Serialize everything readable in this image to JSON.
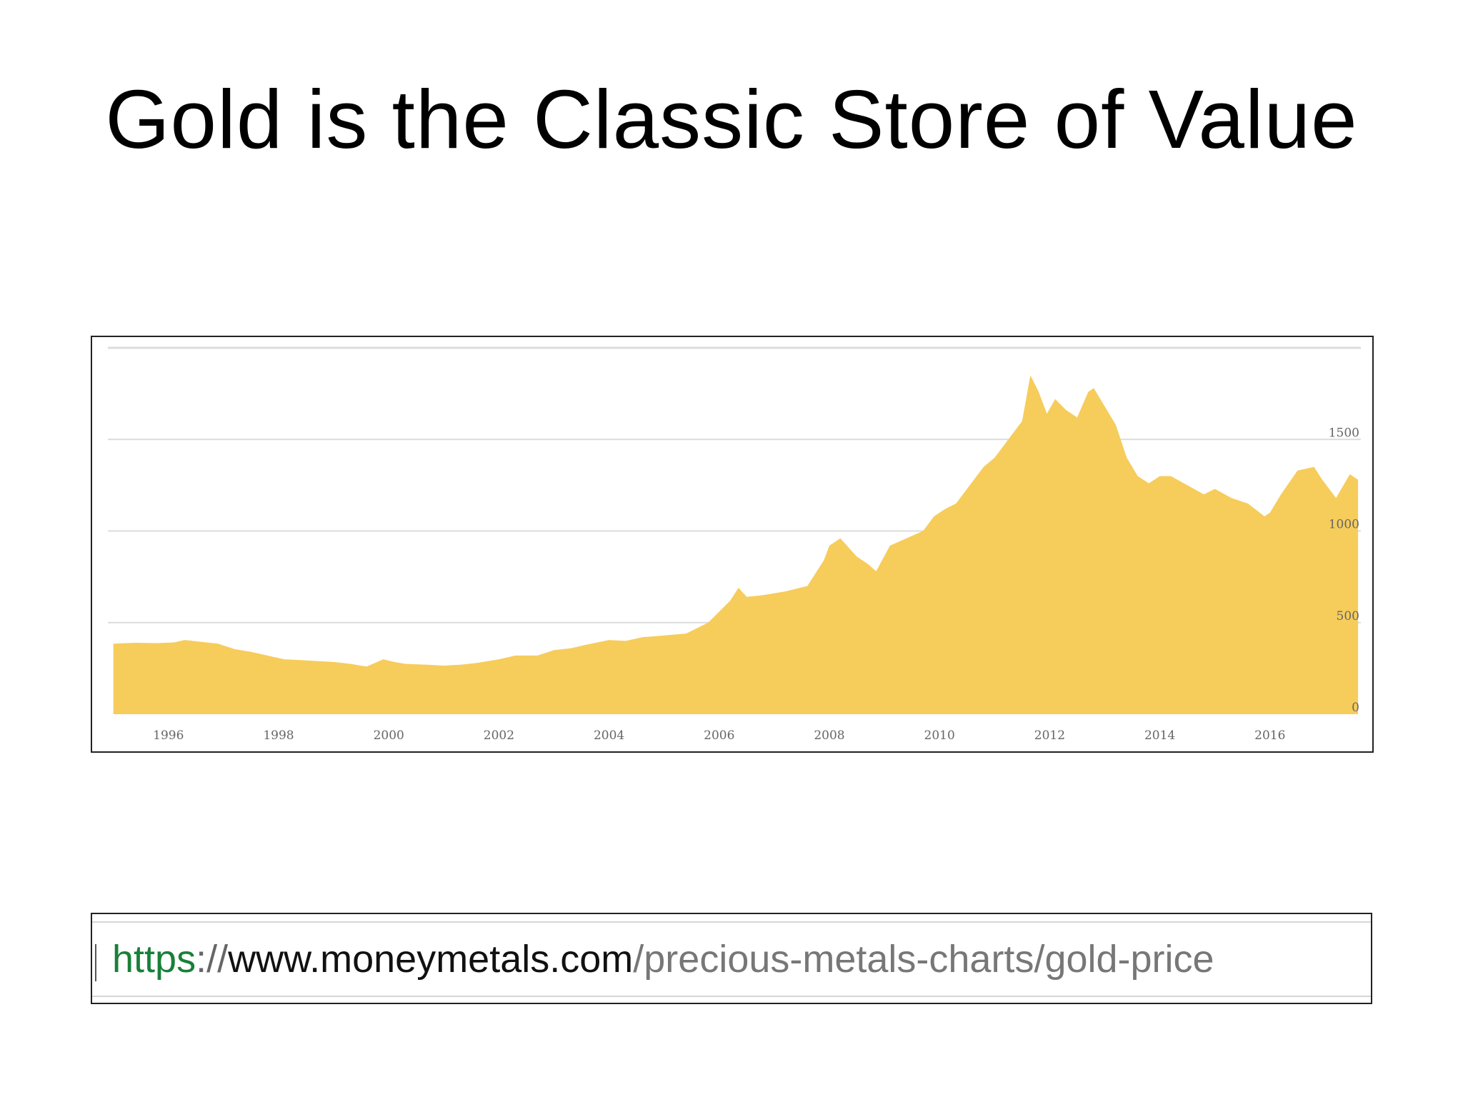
{
  "slide": {
    "title": "Gold is the Classic Store of Value"
  },
  "url_bar": {
    "scheme": "https",
    "separator": "://",
    "host": "www.moneymetals.com",
    "path": "/precious-metals-charts/gold-price"
  },
  "colors": {
    "area_fill": "#f6cc5b",
    "gridline": "#dcdcdc",
    "tick_text": "#666666",
    "scheme_green": "#188038"
  },
  "chart_data": {
    "type": "area",
    "title": "",
    "xlabel": "",
    "ylabel": "",
    "xlim": [
      1994.9,
      2017.65
    ],
    "ylim": [
      0,
      2000
    ],
    "grid": true,
    "y_axis_side": "right",
    "x_ticks": [
      1996,
      1998,
      2000,
      2002,
      2004,
      2006,
      2008,
      2010,
      2012,
      2014,
      2016
    ],
    "y_ticks": [
      0,
      500,
      1000,
      1500
    ],
    "series": [
      {
        "x": [
          1995.0,
          1995.4,
          1995.8,
          1996.1,
          1996.3,
          1996.6,
          1996.9,
          1997.2,
          1997.5,
          1997.8,
          1998.1,
          1998.4,
          1998.7,
          1999.0,
          1999.3,
          1999.6,
          1999.9,
          2000.1,
          2000.3,
          2000.7,
          2001.0,
          2001.3,
          2001.6,
          2002.0,
          2002.3,
          2002.7,
          2003.0,
          2003.3,
          2003.6,
          2004.0,
          2004.3,
          2004.6,
          2005.0,
          2005.4,
          2005.8,
          2006.0,
          2006.2,
          2006.35,
          2006.5,
          2006.8,
          2007.2,
          2007.6,
          2007.9,
          2008.0,
          2008.2,
          2008.5,
          2008.7,
          2008.85,
          2009.1,
          2009.4,
          2009.7,
          2009.9,
          2010.1,
          2010.3,
          2010.5,
          2010.8,
          2011.0,
          2011.3,
          2011.5,
          2011.65,
          2011.8,
          2011.95,
          2012.1,
          2012.3,
          2012.5,
          2012.7,
          2012.8,
          2013.0,
          2013.2,
          2013.4,
          2013.6,
          2013.8,
          2014.0,
          2014.2,
          2014.5,
          2014.8,
          2015.0,
          2015.3,
          2015.6,
          2015.9,
          2016.0,
          2016.2,
          2016.5,
          2016.8,
          2016.95,
          2017.2,
          2017.45,
          2017.6
        ],
        "values": [
          385,
          390,
          388,
          392,
          405,
          395,
          385,
          355,
          340,
          320,
          300,
          295,
          290,
          285,
          275,
          260,
          300,
          285,
          275,
          270,
          265,
          270,
          280,
          300,
          320,
          320,
          350,
          360,
          380,
          405,
          400,
          420,
          430,
          440,
          500,
          560,
          620,
          690,
          640,
          650,
          670,
          700,
          840,
          920,
          960,
          860,
          820,
          780,
          920,
          960,
          1000,
          1080,
          1120,
          1150,
          1230,
          1350,
          1400,
          1520,
          1600,
          1850,
          1760,
          1640,
          1720,
          1660,
          1620,
          1760,
          1780,
          1680,
          1580,
          1400,
          1300,
          1260,
          1300,
          1300,
          1250,
          1200,
          1230,
          1180,
          1150,
          1080,
          1100,
          1200,
          1330,
          1350,
          1280,
          1180,
          1310,
          1280
        ]
      }
    ]
  }
}
